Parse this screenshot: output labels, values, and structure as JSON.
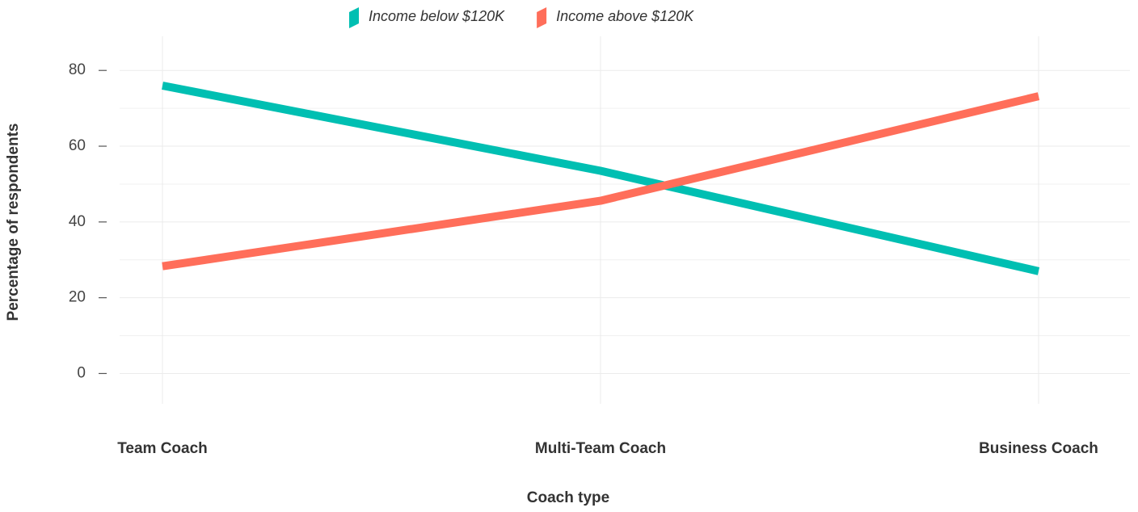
{
  "chart_data": {
    "type": "line",
    "x_label": "Coach type",
    "y_label": "Percentage of respondents",
    "categories": [
      "Team Coach",
      "Multi-Team Coach",
      "Business Coach"
    ],
    "series": [
      {
        "name": "Income below $120K",
        "color": "#00bfb2",
        "values": [
          76,
          53.5,
          27
        ]
      },
      {
        "name": "Income above $120K",
        "color": "#ff6e5a",
        "values": [
          28.3,
          45.6,
          73.2
        ]
      }
    ],
    "ylim": [
      -8,
      89
    ],
    "yticks": [
      0,
      20,
      40,
      60,
      80
    ],
    "minor_yticks": [
      10,
      30,
      50,
      70
    ],
    "grid": true,
    "legend": "top"
  }
}
